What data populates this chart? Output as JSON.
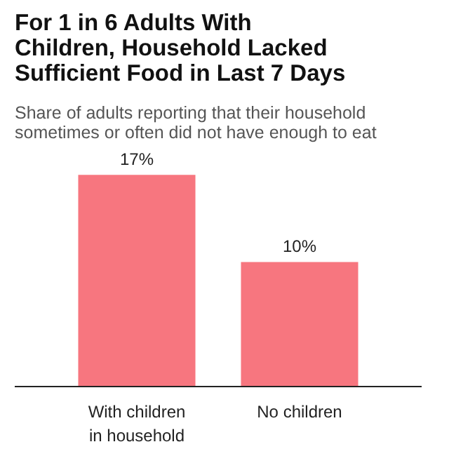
{
  "chart_data": {
    "type": "bar",
    "title": "For 1 in 6 Adults With Children, Household Lacked Sufficient Food in Last 7 Days",
    "subtitle": "Share of adults reporting that their household sometimes or often did not have enough to eat",
    "categories": [
      "With children in household",
      "No children"
    ],
    "values": [
      17,
      10
    ],
    "color": "#f7767f",
    "value_labels": [
      "17%",
      "10%"
    ]
  }
}
